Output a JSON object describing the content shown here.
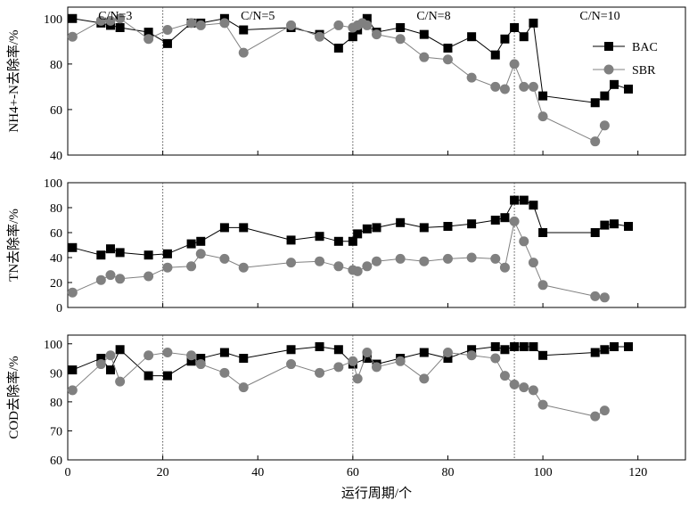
{
  "chart_data": [
    {
      "type": "line",
      "ylabel": "NH4+-N去除率/%",
      "ylim": [
        40,
        105
      ],
      "yticks": [
        40,
        60,
        80,
        100
      ],
      "xlim": [
        0,
        130
      ],
      "phases": [
        {
          "label": "C/N=3",
          "x_start": 0,
          "x_end": 20
        },
        {
          "label": "C/N=5",
          "x_start": 20,
          "x_end": 60
        },
        {
          "label": "C/N=8",
          "x_start": 60,
          "x_end": 94
        },
        {
          "label": "C/N=10",
          "x_start": 94,
          "x_end": 130
        }
      ],
      "legend": {
        "position": "top-right"
      },
      "series": [
        {
          "name": "BAC",
          "marker": "square",
          "color": "#000000",
          "x": [
            1,
            7,
            9,
            11,
            17,
            21,
            26,
            28,
            33,
            37,
            47,
            53,
            57,
            60,
            61,
            63,
            65,
            70,
            75,
            80,
            85,
            90,
            92,
            94,
            96,
            98,
            100,
            111,
            113,
            115,
            118
          ],
          "y": [
            100,
            98,
            97,
            96,
            94,
            89,
            98,
            98,
            100,
            95,
            96,
            93,
            87,
            92,
            95,
            100,
            94,
            96,
            93,
            87,
            92,
            84,
            91,
            96,
            92,
            98,
            66,
            63,
            66,
            71,
            69
          ]
        },
        {
          "name": "SBR",
          "marker": "circle",
          "color": "#808080",
          "x": [
            1,
            7,
            9,
            11,
            17,
            21,
            26,
            28,
            33,
            37,
            47,
            53,
            57,
            60,
            61,
            62,
            63,
            65,
            70,
            75,
            80,
            85,
            90,
            92,
            94,
            96,
            98,
            100,
            111,
            113
          ],
          "y": [
            92,
            99,
            99,
            100,
            91,
            95,
            98,
            97,
            98,
            85,
            97,
            92,
            97,
            96,
            97,
            98,
            97,
            93,
            91,
            83,
            82,
            74,
            70,
            69,
            80,
            70,
            70,
            57,
            46,
            53
          ]
        }
      ]
    },
    {
      "type": "line",
      "ylabel": "TN去除率/%",
      "ylim": [
        0,
        100
      ],
      "yticks": [
        0,
        20,
        40,
        60,
        80,
        100
      ],
      "xlim": [
        0,
        130
      ],
      "series": [
        {
          "name": "BAC",
          "marker": "square",
          "color": "#000000",
          "x": [
            1,
            7,
            9,
            11,
            17,
            21,
            26,
            28,
            33,
            37,
            47,
            53,
            57,
            60,
            61,
            63,
            65,
            70,
            75,
            80,
            85,
            90,
            92,
            94,
            96,
            98,
            100,
            111,
            113,
            115,
            118
          ],
          "y": [
            48,
            42,
            47,
            44,
            42,
            43,
            51,
            53,
            64,
            64,
            54,
            57,
            53,
            53,
            59,
            63,
            64,
            68,
            64,
            65,
            67,
            70,
            72,
            86,
            86,
            82,
            60,
            60,
            66,
            67,
            65
          ]
        },
        {
          "name": "SBR",
          "marker": "circle",
          "color": "#808080",
          "x": [
            1,
            7,
            9,
            11,
            17,
            21,
            26,
            28,
            33,
            37,
            47,
            53,
            57,
            60,
            61,
            63,
            65,
            70,
            75,
            80,
            85,
            90,
            92,
            94,
            96,
            98,
            100,
            111,
            113
          ],
          "y": [
            12,
            22,
            26,
            23,
            25,
            32,
            33,
            43,
            39,
            32,
            36,
            37,
            33,
            30,
            29,
            33,
            37,
            39,
            37,
            39,
            40,
            39,
            32,
            69,
            53,
            36,
            18,
            9,
            8
          ]
        }
      ]
    },
    {
      "type": "line",
      "ylabel": "COD去除率/%",
      "xlabel": "运行周期/个",
      "ylim": [
        60,
        103
      ],
      "yticks": [
        60,
        70,
        80,
        90,
        100
      ],
      "xlim": [
        0,
        130
      ],
      "xticks": [
        0,
        20,
        40,
        60,
        80,
        100,
        120
      ],
      "series": [
        {
          "name": "BAC",
          "marker": "square",
          "color": "#000000",
          "x": [
            1,
            7,
            9,
            11,
            17,
            21,
            26,
            28,
            33,
            37,
            47,
            53,
            57,
            60,
            63,
            65,
            70,
            75,
            80,
            85,
            90,
            92,
            94,
            96,
            98,
            100,
            111,
            113,
            115,
            118
          ],
          "y": [
            91,
            95,
            91,
            98,
            89,
            89,
            94,
            95,
            97,
            95,
            98,
            99,
            98,
            93,
            95,
            93,
            95,
            97,
            95,
            98,
            99,
            98,
            99,
            99,
            99,
            96,
            97,
            98,
            99,
            99
          ]
        },
        {
          "name": "SBR",
          "marker": "circle",
          "color": "#808080",
          "x": [
            1,
            7,
            9,
            11,
            17,
            21,
            26,
            28,
            33,
            37,
            47,
            53,
            57,
            60,
            61,
            63,
            65,
            70,
            75,
            80,
            85,
            90,
            92,
            94,
            96,
            98,
            100,
            111,
            113
          ],
          "y": [
            84,
            93,
            96,
            87,
            96,
            97,
            96,
            93,
            90,
            85,
            93,
            90,
            92,
            94,
            88,
            97,
            92,
            94,
            88,
            97,
            96,
            95,
            89,
            86,
            85,
            84,
            79,
            75,
            77
          ]
        }
      ]
    }
  ]
}
